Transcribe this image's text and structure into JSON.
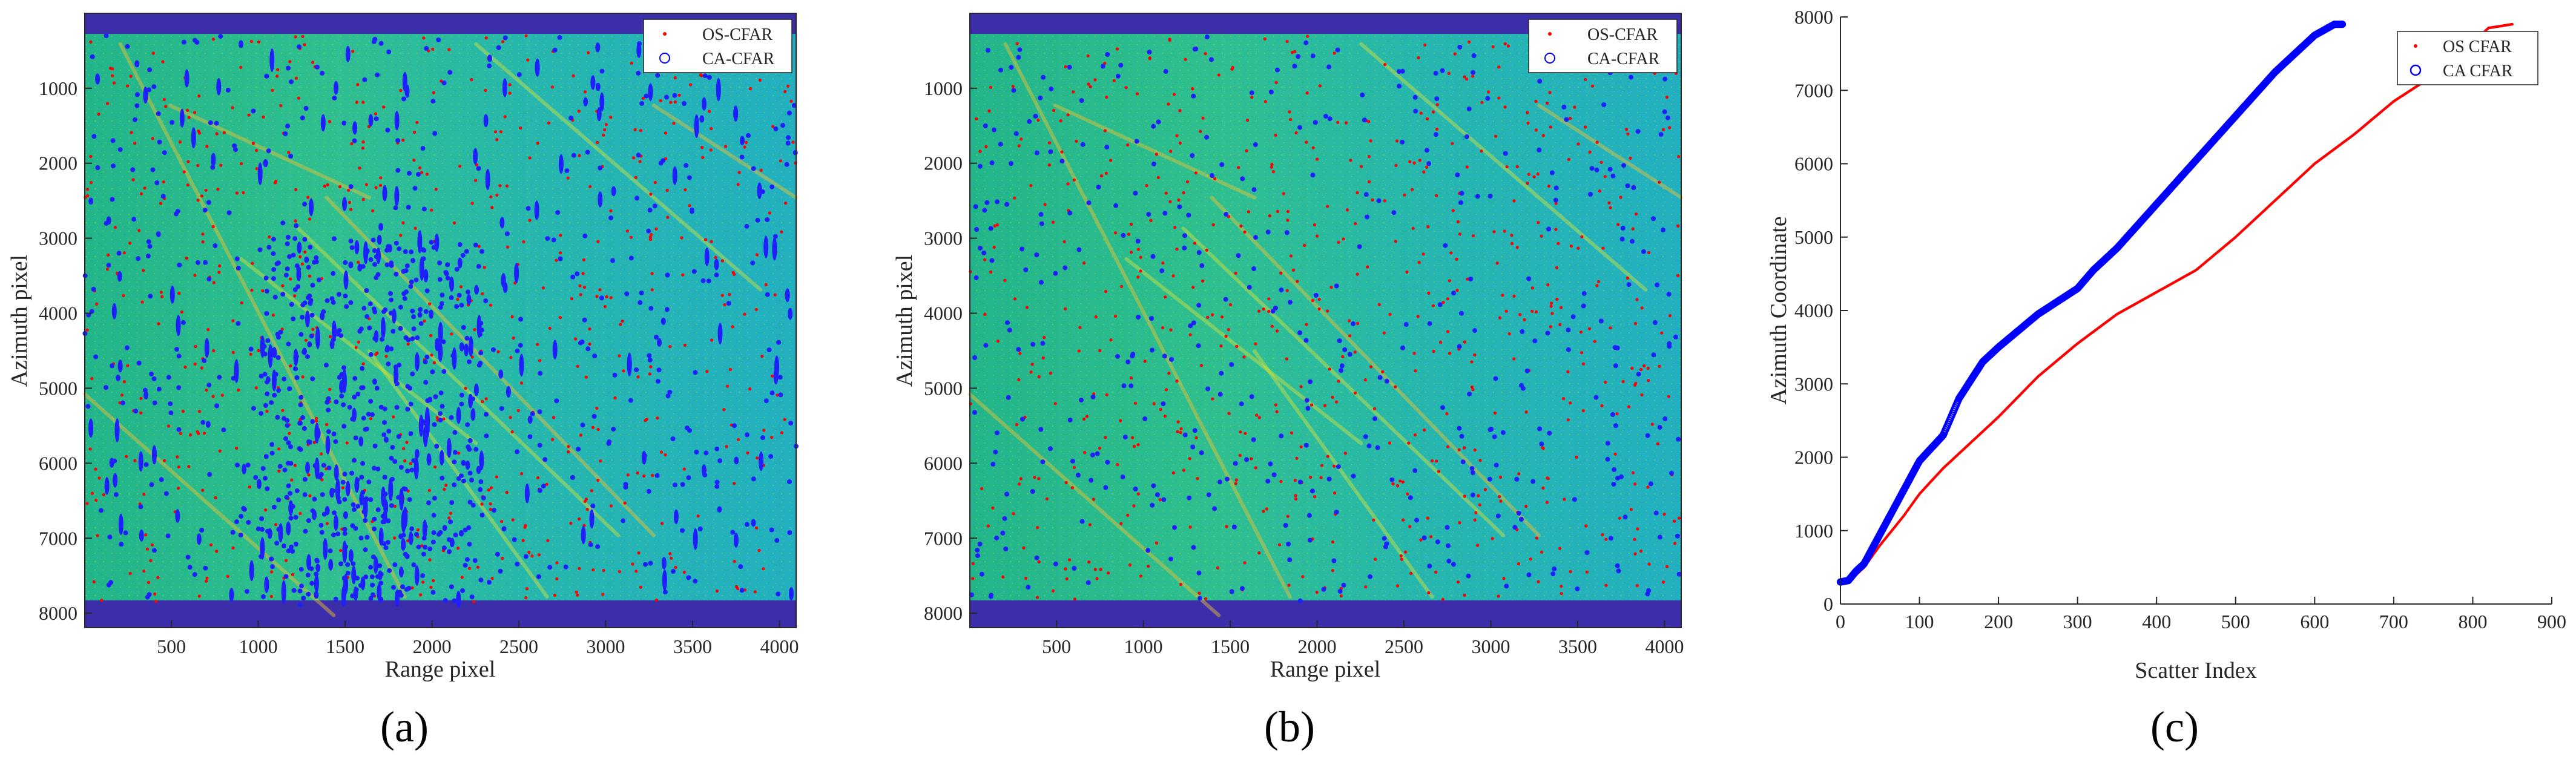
{
  "panels": {
    "a": {
      "label": "(a)"
    },
    "b": {
      "label": "(b)"
    },
    "c": {
      "label": "(c)"
    }
  },
  "chart_data": [
    {
      "type": "heatmap",
      "panel": "(a)",
      "xlabel": "Range pixel",
      "ylabel": "Azimuth pixel",
      "xlim": [
        1,
        4096
      ],
      "ylim": [
        8192,
        1
      ],
      "y_reversed": true,
      "xticks": [
        500,
        1000,
        1500,
        2000,
        2500,
        3000,
        3500,
        4000
      ],
      "yticks": [
        1000,
        2000,
        3000,
        4000,
        5000,
        6000,
        7000,
        8000
      ],
      "legend": {
        "position": "top-right",
        "entries": [
          {
            "label": "OS-CFAR",
            "marker": "dot",
            "color": "#ff0000"
          },
          {
            "label": "CA-CFAR",
            "marker": "circle",
            "color": "#0000ff"
          }
        ]
      },
      "ca_cfar_density": "high",
      "colors": {
        "background_field": "#27b896",
        "border": "#3c2ea8",
        "os_points": "#ff0000",
        "ca_points": "#2020ff"
      }
    },
    {
      "type": "heatmap",
      "panel": "(b)",
      "xlabel": "Range pixel",
      "ylabel": "Azimuth pixel",
      "xlim": [
        1,
        4096
      ],
      "ylim": [
        8192,
        1
      ],
      "y_reversed": true,
      "xticks": [
        500,
        1000,
        1500,
        2000,
        2500,
        3000,
        3500,
        4000
      ],
      "yticks": [
        1000,
        2000,
        3000,
        4000,
        5000,
        6000,
        7000,
        8000
      ],
      "legend": {
        "position": "top-right",
        "entries": [
          {
            "label": "OS-CFAR",
            "marker": "dot",
            "color": "#ff0000"
          },
          {
            "label": "CA-CFAR",
            "marker": "circle",
            "color": "#0000ff"
          }
        ]
      },
      "ca_cfar_density": "low",
      "colors": {
        "background_field": "#27b896",
        "border": "#3c2ea8",
        "os_points": "#ff0000",
        "ca_points": "#2020ff"
      }
    },
    {
      "type": "scatter",
      "panel": "(c)",
      "xlabel": "Scatter Index",
      "ylabel": "Azimuth Coordinate",
      "xlim": [
        0,
        900
      ],
      "ylim": [
        0,
        8000
      ],
      "xticks": [
        0,
        100,
        200,
        300,
        400,
        500,
        600,
        700,
        800,
        900
      ],
      "yticks": [
        0,
        1000,
        2000,
        3000,
        4000,
        5000,
        6000,
        7000,
        8000
      ],
      "legend_position": "top-right",
      "series": [
        {
          "name": "OS CFAR",
          "marker": "dot",
          "color": "#ff0000",
          "x": [
            0,
            10,
            20,
            30,
            50,
            80,
            100,
            130,
            150,
            180,
            200,
            250,
            300,
            350,
            400,
            450,
            500,
            550,
            600,
            650,
            700,
            750,
            800,
            820,
            850
          ],
          "y": [
            300,
            320,
            400,
            500,
            800,
            1200,
            1500,
            1850,
            2050,
            2350,
            2550,
            3100,
            3550,
            3950,
            4250,
            4550,
            5000,
            5500,
            6000,
            6400,
            6850,
            7200,
            7650,
            7850,
            7900
          ]
        },
        {
          "name": "CA CFAR",
          "marker": "circle",
          "color": "#0000ff",
          "x": [
            0,
            10,
            20,
            30,
            50,
            80,
            100,
            130,
            150,
            180,
            200,
            250,
            300,
            320,
            350,
            400,
            450,
            500,
            550,
            600,
            625,
            635
          ],
          "y": [
            300,
            320,
            450,
            550,
            950,
            1550,
            1950,
            2300,
            2800,
            3300,
            3500,
            3950,
            4300,
            4550,
            4850,
            5450,
            6050,
            6650,
            7250,
            7750,
            7900,
            7900
          ]
        }
      ]
    }
  ]
}
